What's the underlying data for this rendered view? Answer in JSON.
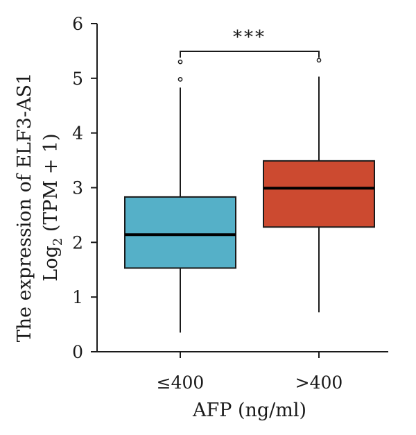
{
  "chart_data": {
    "type": "box",
    "xlabel": "AFP (ng/ml)",
    "ylabel_line1": "The expression of ELF3-AS1",
    "ylabel_line2_main": "Log",
    "ylabel_line2_sub": "2",
    "ylabel_line2_rest": " (TPM + 1)",
    "ylim": [
      0,
      6
    ],
    "yticks": [
      0,
      1,
      2,
      3,
      4,
      5,
      6
    ],
    "categories": [
      "≤400",
      ">400"
    ],
    "boxes": [
      {
        "category": "≤400",
        "color": "#55b0c8",
        "min": 0.35,
        "q1": 1.53,
        "median": 2.14,
        "q3": 2.83,
        "max": 4.83,
        "outliers": [
          4.98,
          5.3
        ]
      },
      {
        "category": ">400",
        "color": "#cc4a30",
        "min": 0.72,
        "q1": 2.28,
        "median": 2.99,
        "q3": 3.49,
        "max": 5.03,
        "outliers": [
          5.33
        ]
      }
    ],
    "significance": {
      "label": "***",
      "between": [
        "≤400",
        ">400"
      ]
    }
  }
}
